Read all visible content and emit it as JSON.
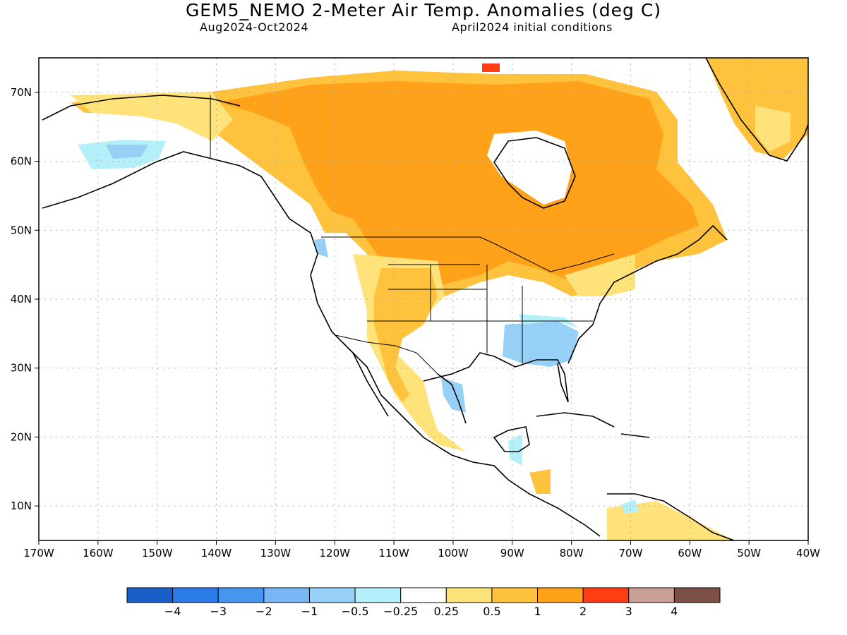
{
  "title": "GEM5_NEMO 2-Meter Air Temp. Anomalies (deg C)",
  "period": "Aug2024-Oct2024",
  "init": "April2024 initial conditions",
  "map": {
    "lon_range": [
      -170,
      -40
    ],
    "lat_range": [
      5,
      75
    ],
    "lon_ticks": [
      {
        "value": -170,
        "label": "170W"
      },
      {
        "value": -160,
        "label": "160W"
      },
      {
        "value": -150,
        "label": "150W"
      },
      {
        "value": -140,
        "label": "140W"
      },
      {
        "value": -130,
        "label": "130W"
      },
      {
        "value": -120,
        "label": "120W"
      },
      {
        "value": -110,
        "label": "110W"
      },
      {
        "value": -100,
        "label": "100W"
      },
      {
        "value": -90,
        "label": "90W"
      },
      {
        "value": -80,
        "label": "80W"
      },
      {
        "value": -70,
        "label": "70W"
      },
      {
        "value": -60,
        "label": "60W"
      },
      {
        "value": -50,
        "label": "50W"
      },
      {
        "value": -40,
        "label": "40W"
      }
    ],
    "lat_ticks": [
      {
        "value": 10,
        "label": "10N"
      },
      {
        "value": 20,
        "label": "20N"
      },
      {
        "value": 30,
        "label": "30N"
      },
      {
        "value": 40,
        "label": "40N"
      },
      {
        "value": 50,
        "label": "50N"
      },
      {
        "value": 60,
        "label": "60N"
      },
      {
        "value": 70,
        "label": "70N"
      }
    ],
    "grid": true
  },
  "colorbar": {
    "colors": [
      "#1a5fc8",
      "#2c7be6",
      "#4696f0",
      "#78b6f5",
      "#97d0f7",
      "#b4f0fa",
      "#ffffff",
      "#ffe27a",
      "#ffc23c",
      "#ffa21a",
      "#ff3c14",
      "#c8a096",
      "#7d5046"
    ],
    "labels": [
      "−4",
      "−3",
      "−2",
      "−1",
      "−0.5",
      "−0.25",
      "0.25",
      "0.5",
      "1",
      "2",
      "3",
      "4"
    ]
  }
}
